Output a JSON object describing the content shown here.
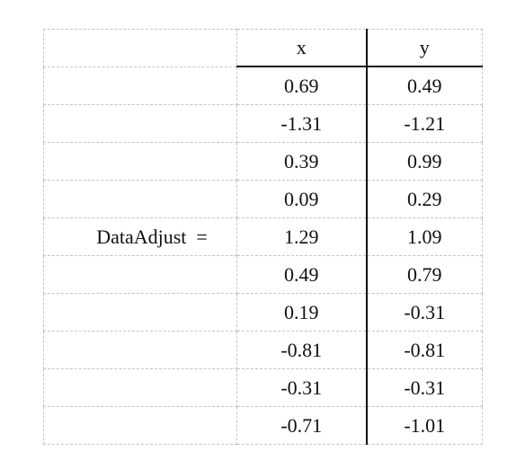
{
  "matrix": {
    "name": "DataAdjust",
    "equals": "=",
    "headers": [
      "x",
      "y"
    ],
    "rows": [
      [
        "0.69",
        "0.49"
      ],
      [
        "-1.31",
        "-1.21"
      ],
      [
        "0.39",
        "0.99"
      ],
      [
        "0.09",
        "0.29"
      ],
      [
        "1.29",
        "1.09"
      ],
      [
        "0.49",
        "0.79"
      ],
      [
        "0.19",
        "-0.31"
      ],
      [
        "-0.81",
        "-0.81"
      ],
      [
        "-0.31",
        "-0.31"
      ],
      [
        "-0.71",
        "-1.01"
      ]
    ]
  }
}
